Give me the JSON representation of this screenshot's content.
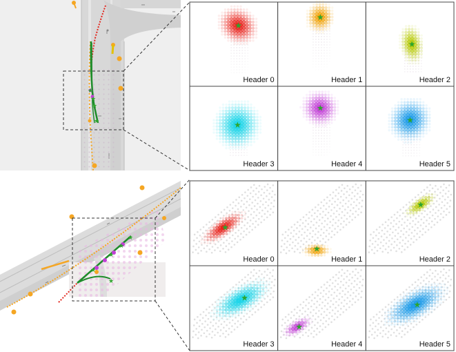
{
  "panels": [
    {
      "headers": [
        "Header 0",
        "Header 1",
        "Header 2",
        "Header 3",
        "Header 4",
        "Header 5"
      ],
      "colors": [
        "#e8221b",
        "#f0a000",
        "#b5c800",
        "#19d4e8",
        "#c23fd6",
        "#1a9ae8"
      ]
    },
    {
      "headers": [
        "Header 0",
        "Header 1",
        "Header 2",
        "Header 3",
        "Header 4",
        "Header 5"
      ],
      "colors": [
        "#e8221b",
        "#f0a000",
        "#b5c800",
        "#19d4e8",
        "#c23fd6",
        "#1a9ae8"
      ]
    }
  ],
  "colors": {
    "road": "#d9d9d9",
    "lane_marking": "#9e9e9e",
    "trajectory": "#1e8c2a",
    "agent": "#f5a623",
    "history": "#e3241b",
    "star": "#2ea52e"
  }
}
